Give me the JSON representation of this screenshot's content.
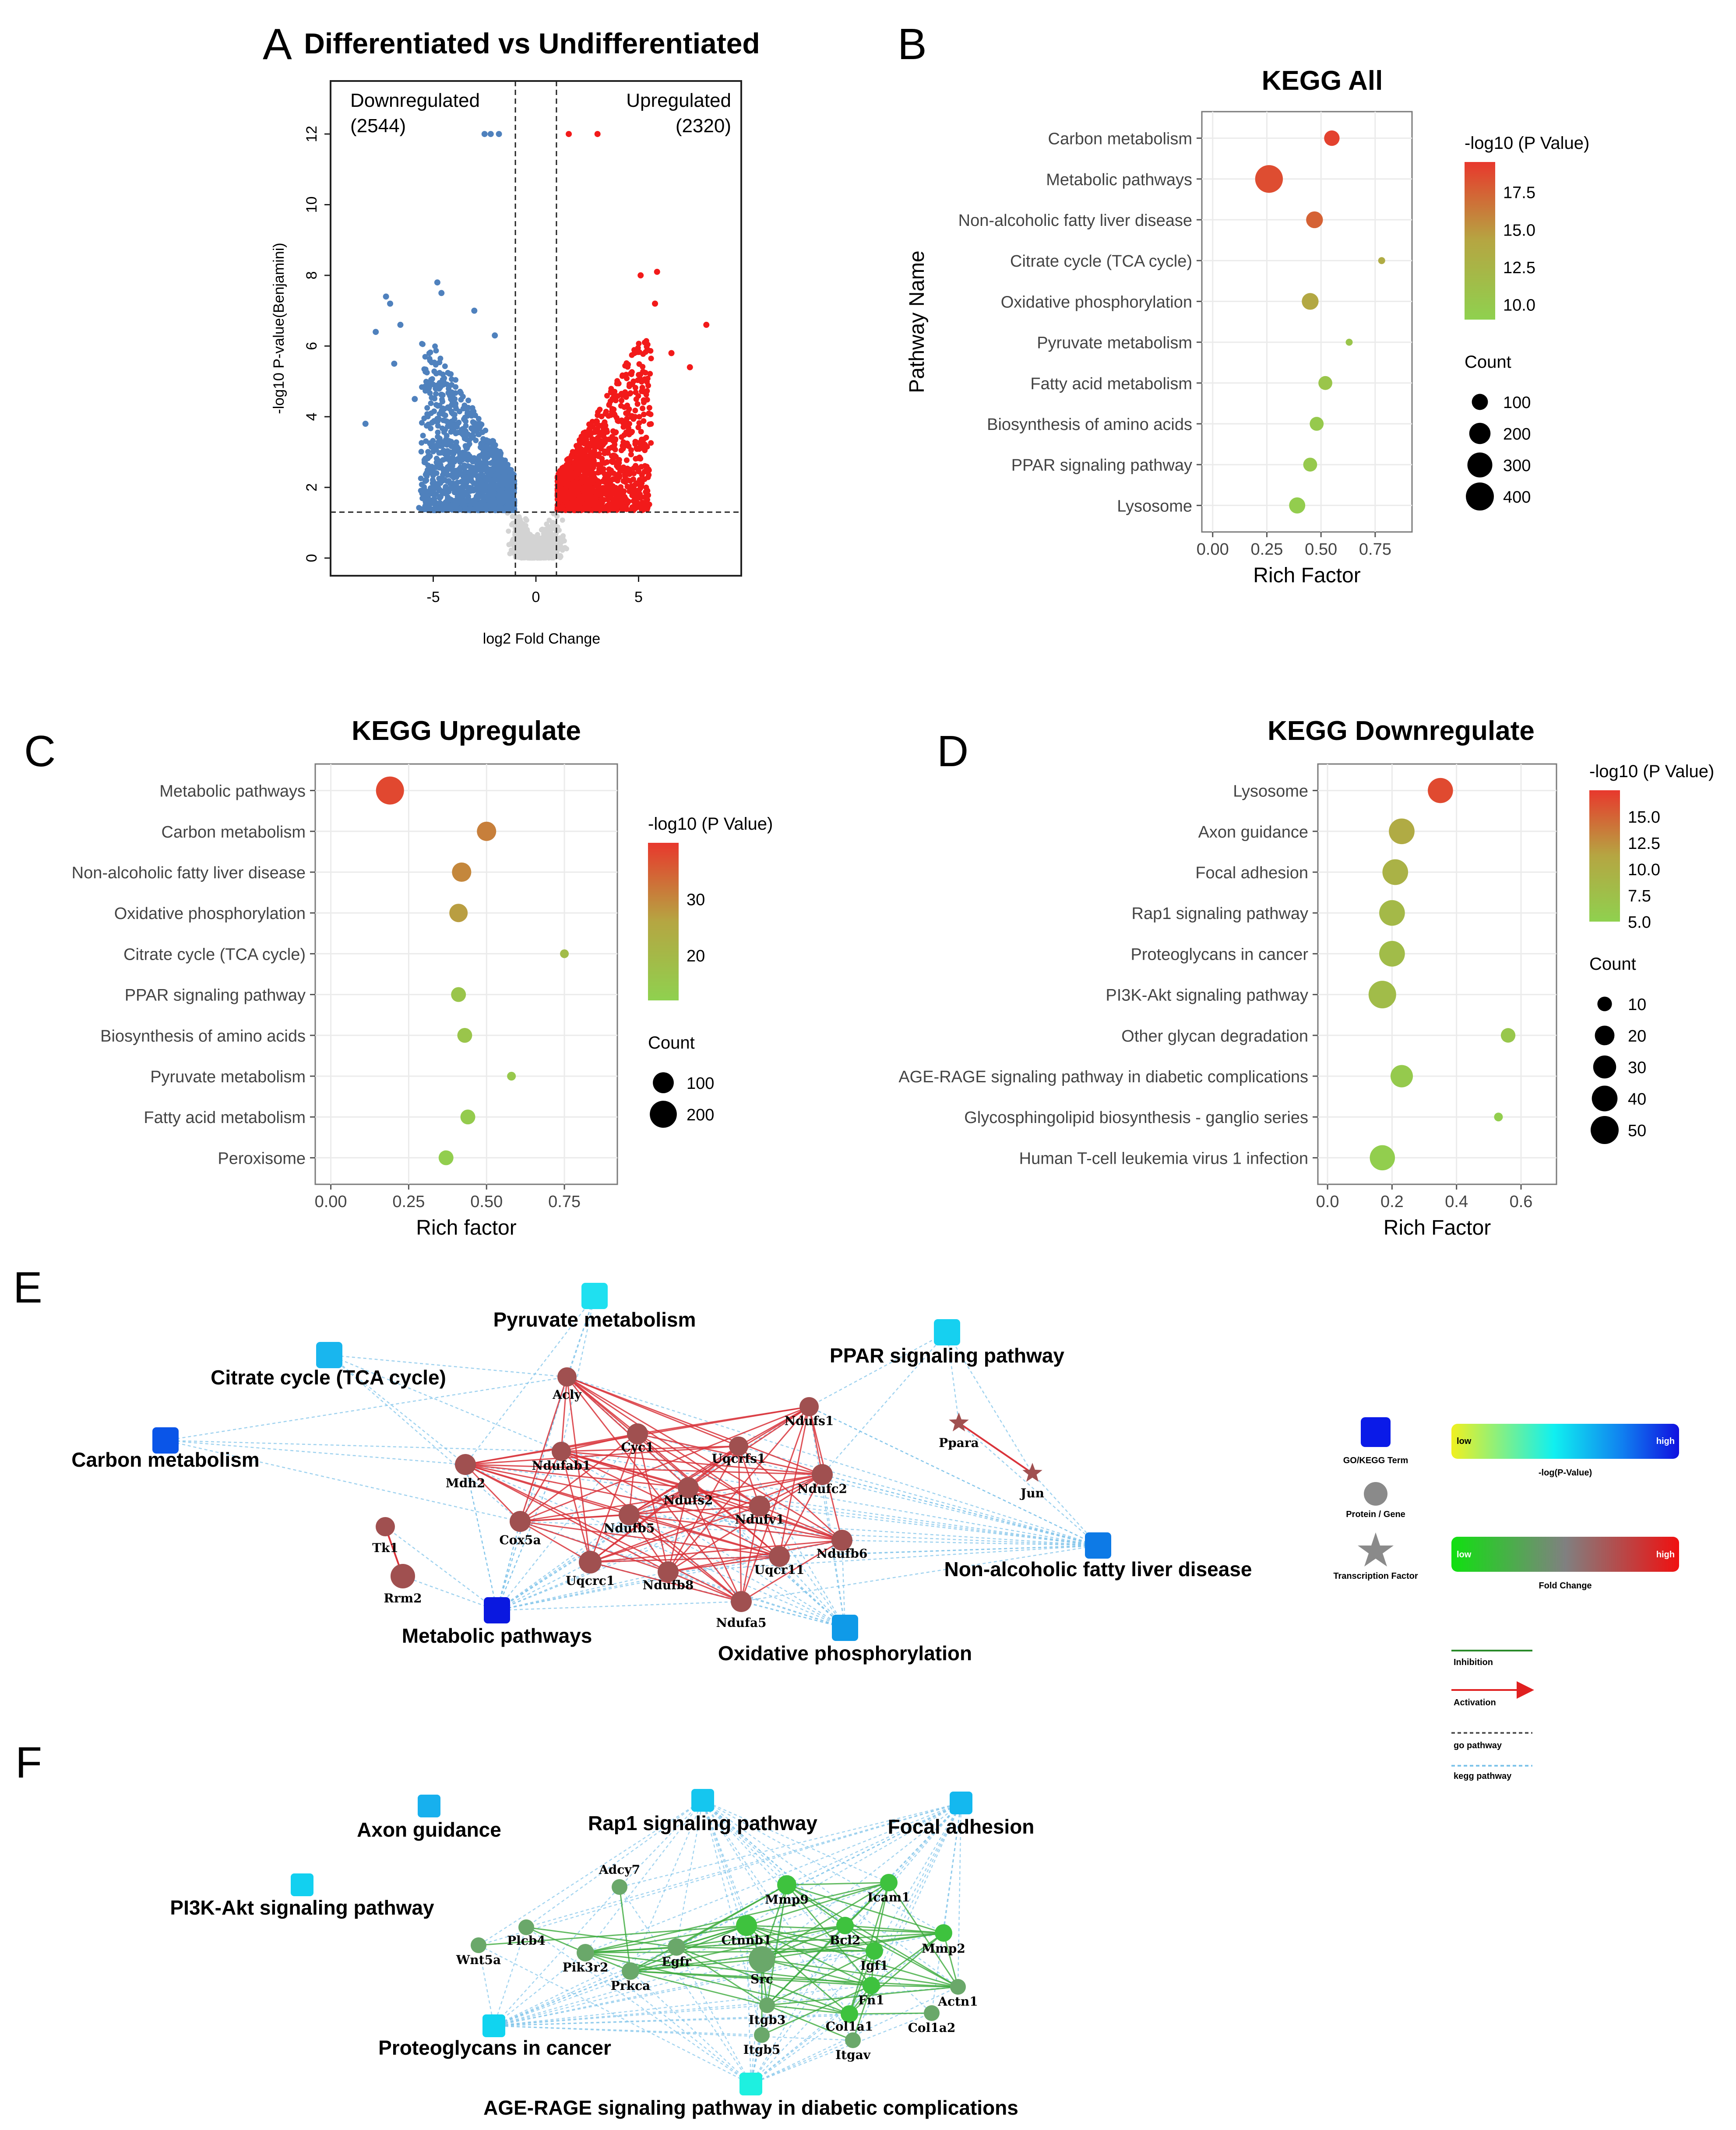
{
  "panel_letters": [
    "A",
    "B",
    "C",
    "D",
    "E",
    "F"
  ],
  "colors": {
    "up": "#f21a1a",
    "down": "#4f81bd",
    "ns": "#d3d3d3",
    "low": "#8fd14f",
    "mid": "#b5a642",
    "high": "#e8382d",
    "network_red": "#d9333a",
    "network_green": "#3cab3c",
    "node_red": "#a05050",
    "node_green": "#6aa86a",
    "kegg_dash": "#7fc4ea"
  },
  "chart_data": [
    {
      "id": "A",
      "type": "scatter",
      "title": "Differentiated vs Undifferentiated",
      "xlabel": "log2 Fold Change",
      "ylabel": "-log10 P-value(Benjamini)",
      "xlim": [
        -10,
        10
      ],
      "ylim": [
        -0.5,
        13.5
      ],
      "xticks": [
        -5,
        0,
        5
      ],
      "yticks": [
        0,
        2,
        4,
        6,
        8,
        10,
        12
      ],
      "thresholds": {
        "x": [
          -1,
          1
        ],
        "y": 1.3
      },
      "annotations": {
        "down_label": "Downregulated",
        "down_count": "(2544)",
        "up_label": "Upregulated",
        "up_count": "(2320)"
      },
      "highlighted_points": {
        "down": [
          [
            -7.3,
            7.4
          ],
          [
            -7.1,
            7.2
          ],
          [
            -4.8,
            7.8
          ],
          [
            -4.6,
            7.5
          ],
          [
            -8.3,
            3.8
          ],
          [
            -7.8,
            6.4
          ],
          [
            -6.6,
            6.6
          ],
          [
            -6.9,
            5.5
          ],
          [
            -5.9,
            4.5
          ],
          [
            -3.0,
            7.0
          ],
          [
            -2.0,
            6.3
          ],
          [
            -2.5,
            12
          ],
          [
            -2.2,
            12
          ],
          [
            -1.8,
            12
          ]
        ],
        "up": [
          [
            1.6,
            12
          ],
          [
            3.0,
            12
          ],
          [
            5.9,
            8.1
          ],
          [
            5.8,
            7.2
          ],
          [
            5.1,
            8.0
          ],
          [
            8.3,
            6.6
          ],
          [
            6.6,
            5.8
          ],
          [
            7.5,
            5.4
          ]
        ]
      },
      "counts": {
        "down": 2544,
        "up": 2320
      }
    },
    {
      "id": "B",
      "type": "scatter",
      "title": "KEGG All",
      "xlabel": "Rich Factor",
      "ylabel": "Pathway Name",
      "xlim": [
        -0.05,
        0.92
      ],
      "xticks": [
        "0.00",
        "0.25",
        "0.50",
        "0.75"
      ],
      "pathways": [
        "Carbon metabolism",
        "Metabolic pathways",
        "Non-alcoholic fatty liver disease",
        "Citrate cycle (TCA cycle)",
        "Oxidative phosphorylation",
        "Pyruvate metabolism",
        "Fatty acid metabolism",
        "Biosynthesis of amino acids",
        "PPAR signaling pathway",
        "Lysosome"
      ],
      "rich_factor": [
        0.55,
        0.26,
        0.47,
        0.78,
        0.45,
        0.63,
        0.52,
        0.48,
        0.45,
        0.39
      ],
      "neg_log10_p": [
        19.0,
        18.5,
        17.5,
        13.5,
        14.0,
        10.5,
        10.5,
        10.0,
        10.0,
        9.5
      ],
      "count": [
        90,
        390,
        110,
        30,
        110,
        30,
        70,
        70,
        70,
        100
      ],
      "color_legend": {
        "title": "-log10 (P Value)",
        "ticks": [
          "17.5",
          "15.0",
          "12.5",
          "10.0"
        ],
        "range": [
          9.0,
          19.5
        ]
      },
      "size_legend": {
        "title": "Count",
        "values": [
          100,
          200,
          300,
          400
        ],
        "range": [
          30,
          400
        ]
      }
    },
    {
      "id": "C",
      "type": "scatter",
      "title": "KEGG Upregulate",
      "xlabel": "Rich factor",
      "ylabel": "",
      "xlim": [
        -0.05,
        0.92
      ],
      "xticks": [
        "0.00",
        "0.25",
        "0.50",
        "0.75"
      ],
      "pathways": [
        "Metabolic pathways",
        "Carbon metabolism",
        "Non-alcoholic fatty liver disease",
        "Oxidative phosphorylation",
        "Citrate cycle (TCA cycle)",
        "PPAR signaling pathway",
        "Biosynthesis of amino acids",
        "Pyruvate metabolism",
        "Fatty acid metabolism",
        "Peroxisome"
      ],
      "rich_factor": [
        0.19,
        0.5,
        0.42,
        0.41,
        0.75,
        0.41,
        0.43,
        0.58,
        0.44,
        0.37
      ],
      "neg_log10_p": [
        38,
        31,
        30,
        27,
        19,
        16,
        16,
        15,
        14,
        13
      ],
      "count": [
        220,
        80,
        80,
        70,
        20,
        40,
        40,
        20,
        40,
        40
      ],
      "color_legend": {
        "title": "-log10 (P Value)",
        "ticks": [
          "30",
          "20"
        ],
        "range": [
          12,
          40
        ]
      },
      "size_legend": {
        "title": "Count",
        "values": [
          100,
          200
        ],
        "range": [
          20,
          220
        ]
      }
    },
    {
      "id": "D",
      "type": "scatter",
      "title": "KEGG Downregulate",
      "xlabel": "Rich Factor",
      "ylabel": "",
      "xlim": [
        -0.03,
        0.71
      ],
      "xticks": [
        "0.0",
        "0.2",
        "0.4",
        "0.6"
      ],
      "pathways": [
        "Lysosome",
        "Axon guidance",
        "Focal adhesion",
        "Rap1 signaling pathway",
        "Proteoglycans in cancer",
        "PI3K-Akt signaling pathway",
        "Other glycan degradation",
        "AGE-RAGE signaling pathway in diabetic complications",
        "Glycosphingolipid biosynthesis - ganglio series",
        "Human T-cell leukemia virus 1 infection"
      ],
      "rich_factor": [
        0.35,
        0.23,
        0.21,
        0.2,
        0.2,
        0.17,
        0.56,
        0.23,
        0.53,
        0.17
      ],
      "neg_log10_p": [
        16.5,
        10.5,
        9.5,
        8.5,
        8.0,
        8.0,
        6.5,
        6.0,
        5.5,
        5.5
      ],
      "count": [
        38,
        40,
        40,
        40,
        40,
        48,
        10,
        28,
        6,
        38
      ],
      "color_legend": {
        "title": "-log10 (P Value)",
        "ticks": [
          "15.0",
          "12.5",
          "10.0",
          "7.5",
          "5.0"
        ],
        "range": [
          5.0,
          17.5
        ]
      },
      "size_legend": {
        "title": "Count",
        "values": [
          10,
          20,
          30,
          40,
          50
        ],
        "range": [
          6,
          50
        ]
      }
    }
  ],
  "network_E": {
    "terms": [
      {
        "id": "pyruvate",
        "label": "Pyruvate metabolism",
        "color": "#1fe0f0"
      },
      {
        "id": "citrate",
        "label": "Citrate cycle (TCA cycle)",
        "color": "#19b6ee"
      },
      {
        "id": "ppar",
        "label": "PPAR signaling pathway",
        "color": "#16d0f0"
      },
      {
        "id": "carbon",
        "label": "Carbon metabolism",
        "color": "#0a55e8"
      },
      {
        "id": "metabolic",
        "label": "Metabolic pathways",
        "color": "#0a18e0"
      },
      {
        "id": "nafld",
        "label": "Non-alcoholic fatty liver disease",
        "color": "#0d7ae6"
      },
      {
        "id": "oxphos",
        "label": "Oxidative phosphorylation",
        "color": "#0f9ae8"
      }
    ],
    "genes": [
      {
        "id": "Acly",
        "label": "Acly",
        "shape": "circle"
      },
      {
        "id": "Ndufs1",
        "label": "Ndufs1",
        "shape": "circle"
      },
      {
        "id": "Cyc1",
        "label": "Cyc1",
        "shape": "circle"
      },
      {
        "id": "Uqcrfs1",
        "label": "Uqcrfs1",
        "shape": "circle"
      },
      {
        "id": "Ndufab1",
        "label": "Ndufab1",
        "shape": "circle"
      },
      {
        "id": "Mdh2",
        "label": "Mdh2",
        "shape": "circle"
      },
      {
        "id": "Ndufc2",
        "label": "Ndufc2",
        "shape": "circle"
      },
      {
        "id": "Ndufs2",
        "label": "Ndufs2",
        "shape": "circle"
      },
      {
        "id": "Ndufv1",
        "label": "Ndufv1",
        "shape": "circle"
      },
      {
        "id": "Ndufb5",
        "label": "Ndufb5",
        "shape": "circle"
      },
      {
        "id": "Cox5a",
        "label": "Cox5a",
        "shape": "circle"
      },
      {
        "id": "Ndufb6",
        "label": "Ndufb6",
        "shape": "circle"
      },
      {
        "id": "Uqcrc1",
        "label": "Uqcrc1",
        "shape": "circle"
      },
      {
        "id": "Ndufb8",
        "label": "Ndufb8",
        "shape": "circle"
      },
      {
        "id": "Uqcr11",
        "label": "Uqcr11",
        "shape": "circle"
      },
      {
        "id": "Ndufa5",
        "label": "Ndufa5",
        "shape": "circle"
      },
      {
        "id": "Tk1",
        "label": "Tk1",
        "shape": "circle"
      },
      {
        "id": "Rrm2",
        "label": "Rrm2",
        "shape": "circle"
      },
      {
        "id": "Ppara",
        "label": "Ppara",
        "shape": "star"
      },
      {
        "id": "Jun",
        "label": "Jun",
        "shape": "star"
      }
    ]
  },
  "network_F": {
    "terms": [
      {
        "id": "axon",
        "label": "Axon guidance",
        "color": "#17b0ee"
      },
      {
        "id": "rap1",
        "label": "Rap1 signaling pathway",
        "color": "#15c6ef"
      },
      {
        "id": "focal",
        "label": "Focal adhesion",
        "color": "#14b8ef"
      },
      {
        "id": "pi3k",
        "label": "PI3K-Akt signaling pathway",
        "color": "#12d0f0"
      },
      {
        "id": "proteo",
        "label": "Proteoglycans in cancer",
        "color": "#10d4f0"
      },
      {
        "id": "age",
        "label": "AGE-RAGE signaling pathway in diabetic complications",
        "color": "#1ef0e0"
      }
    ],
    "genes": [
      {
        "id": "Adcy7",
        "label": "Adcy7"
      },
      {
        "id": "Mmp9",
        "label": "Mmp9"
      },
      {
        "id": "Icam1",
        "label": "Icam1"
      },
      {
        "id": "Plcb4",
        "label": "Plcb4"
      },
      {
        "id": "Ctnnb1",
        "label": "Ctnnb1"
      },
      {
        "id": "Bcl2",
        "label": "Bcl2"
      },
      {
        "id": "Mmp2",
        "label": "Mmp2"
      },
      {
        "id": "Wnt5a",
        "label": "Wnt5a"
      },
      {
        "id": "Pik3r2",
        "label": "Pik3r2"
      },
      {
        "id": "Egfr",
        "label": "Egfr"
      },
      {
        "id": "Src",
        "label": "Src"
      },
      {
        "id": "Igf1",
        "label": "Igf1"
      },
      {
        "id": "Prkca",
        "label": "Prkca"
      },
      {
        "id": "Fn1",
        "label": "Fn1"
      },
      {
        "id": "Actn1",
        "label": "Actn1"
      },
      {
        "id": "Itgb3",
        "label": "Itgb3"
      },
      {
        "id": "Col1a1",
        "label": "Col1a1"
      },
      {
        "id": "Col1a2",
        "label": "Col1a2"
      },
      {
        "id": "Itgb5",
        "label": "Itgb5"
      },
      {
        "id": "Itgav",
        "label": "Itgav"
      }
    ]
  },
  "legend_E": {
    "term": "GO/KEGG Term",
    "gene": "Protein / Gene",
    "tf": "Transcription Factor",
    "pvalue_bar": {
      "low": "low",
      "high": "high",
      "title": "-log(P-Value)"
    },
    "fc_bar": {
      "low": "low",
      "high": "high",
      "title": "Fold Change"
    },
    "lines": {
      "inhibition": "Inhibition",
      "activation": "Activation",
      "go": "go pathway",
      "kegg": "kegg pathway"
    }
  }
}
